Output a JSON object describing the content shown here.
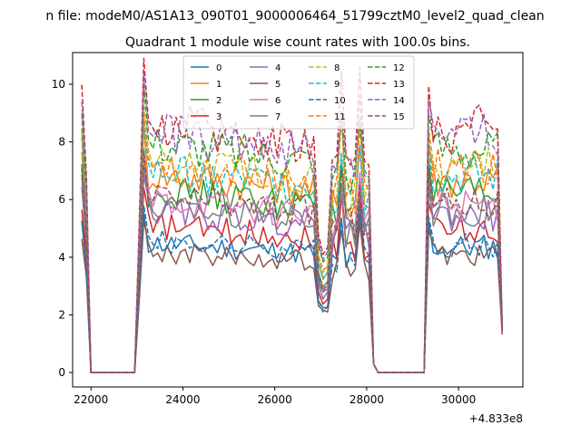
{
  "figure": {
    "suptitle": "n file: modeM0/AS1A13_090T01_9000006464_51799cztM0_level2_quad_clean",
    "offset_label": "+4.833e8"
  },
  "chart_data": {
    "type": "line",
    "title": "Quadrant 1 module wise count rates with 100.0s bins.",
    "xlabel": "",
    "ylabel": "",
    "x_offset": 483300000,
    "xlim": [
      21600,
      31400
    ],
    "ylim": [
      -0.5,
      11.1
    ],
    "xticks": [
      22000,
      24000,
      26000,
      28000,
      30000
    ],
    "yticks": [
      0,
      2,
      4,
      6,
      8,
      10
    ],
    "grid": false,
    "legend": {
      "placement": "upper-center",
      "columns": 4
    },
    "series": [
      {
        "name": "0",
        "color": "#1f77b4",
        "dash": "solid",
        "level": 4.5
      },
      {
        "name": "1",
        "color": "#ff7f0e",
        "dash": "solid",
        "level": 6.9
      },
      {
        "name": "2",
        "color": "#2ca02c",
        "dash": "solid",
        "level": 6.3
      },
      {
        "name": "3",
        "color": "#d62728",
        "dash": "solid",
        "level": 5.1
      },
      {
        "name": "4",
        "color": "#9467bd",
        "dash": "solid",
        "level": 5.6
      },
      {
        "name": "5",
        "color": "#8c564b",
        "dash": "solid",
        "level": 4.2
      },
      {
        "name": "6",
        "color": "#e377c2",
        "dash": "solid",
        "level": 6.0
      },
      {
        "name": "7",
        "color": "#7f7f7f",
        "dash": "solid",
        "level": 5.8
      },
      {
        "name": "8",
        "color": "#bcbd22",
        "dash": "dashed",
        "level": 7.4
      },
      {
        "name": "9",
        "color": "#17becf",
        "dash": "dashed",
        "level": 7.0
      },
      {
        "name": "10",
        "color": "#1f77b4",
        "dash": "dashed",
        "level": 4.6
      },
      {
        "name": "11",
        "color": "#ff7f0e",
        "dash": "dashed",
        "level": 7.3
      },
      {
        "name": "12",
        "color": "#2ca02c",
        "dash": "dashed",
        "level": 8.0
      },
      {
        "name": "13",
        "color": "#d62728",
        "dash": "dashed",
        "level": 8.7
      },
      {
        "name": "14",
        "color": "#9467bd",
        "dash": "dashed",
        "level": 8.4
      },
      {
        "name": "15",
        "color": "#8c564b",
        "dash": "dashed",
        "level": 6.1
      }
    ],
    "segments": [
      {
        "from": 21800,
        "to": 22000,
        "state": "decay"
      },
      {
        "from": 22000,
        "to": 22950,
        "state": "gap"
      },
      {
        "from": 23050,
        "to": 26900,
        "state": "active"
      },
      {
        "from": 26900,
        "to": 27200,
        "state": "dip"
      },
      {
        "from": 27200,
        "to": 28150,
        "state": "active"
      },
      {
        "from": 28150,
        "to": 29250,
        "state": "gap"
      },
      {
        "from": 29350,
        "to": 30950,
        "state": "active"
      }
    ]
  }
}
